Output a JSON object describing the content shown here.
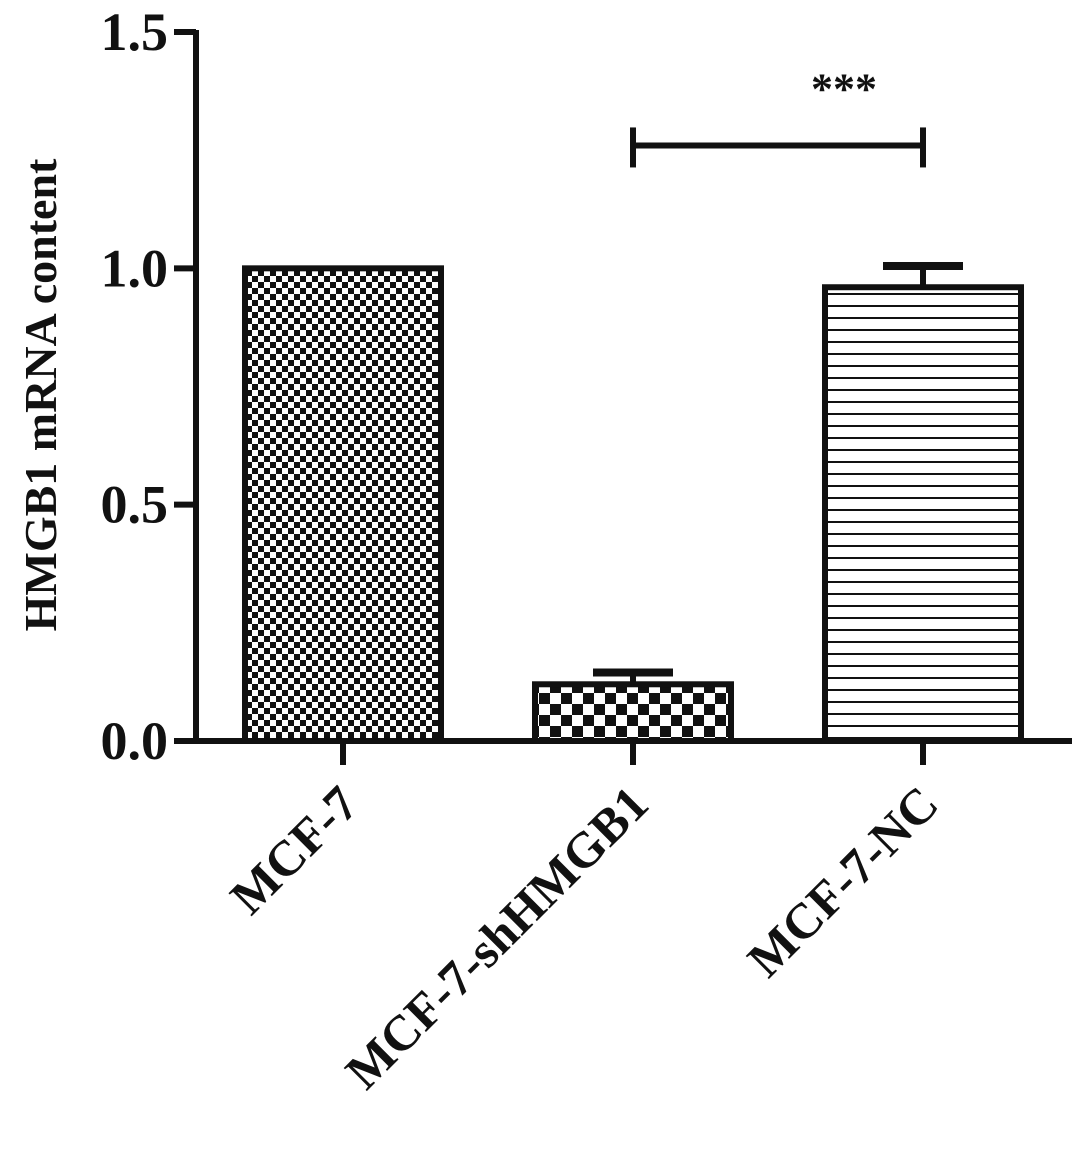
{
  "chart_data": {
    "type": "bar",
    "title": "",
    "xlabel": "",
    "ylabel": "HMGB1 mRNA content",
    "ylim": [
      0,
      1.5
    ],
    "yticks": [
      0.0,
      0.5,
      1.0,
      1.5
    ],
    "ytick_labels": [
      "0.0",
      "0.5",
      "1.0",
      "1.5"
    ],
    "categories": [
      "MCF-7",
      "MCF-7-shHMGB1",
      "MCF-7-NC"
    ],
    "values": [
      1.0,
      0.12,
      0.96
    ],
    "errors": [
      0.0,
      0.025,
      0.045
    ],
    "patterns": [
      "fine-checker",
      "coarse-checker",
      "horizontal-lines"
    ],
    "grid": false,
    "legend": "none",
    "significance": [
      {
        "from": 1,
        "to": 2,
        "y": 1.26,
        "label": "***"
      }
    ],
    "colors": {
      "ink": "#111111",
      "background": "#ffffff"
    }
  }
}
